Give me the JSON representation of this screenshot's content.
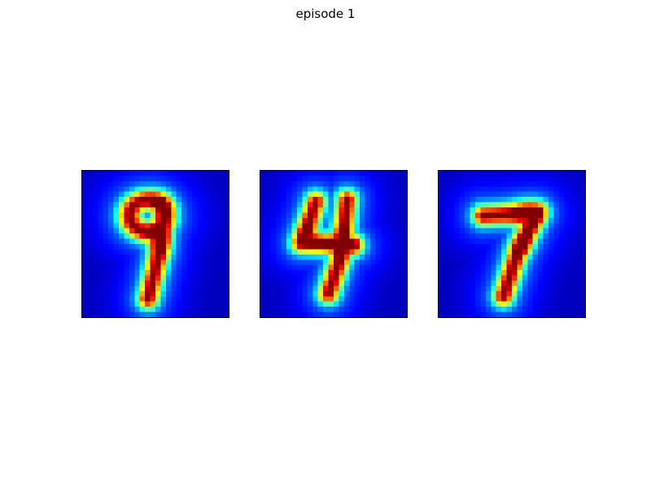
{
  "figure": {
    "title": "episode 1",
    "colormap": "jet",
    "background_color": "#00007f",
    "panels": [
      {
        "depicts": "9"
      },
      {
        "depicts": "4"
      },
      {
        "depicts": "7"
      }
    ]
  }
}
